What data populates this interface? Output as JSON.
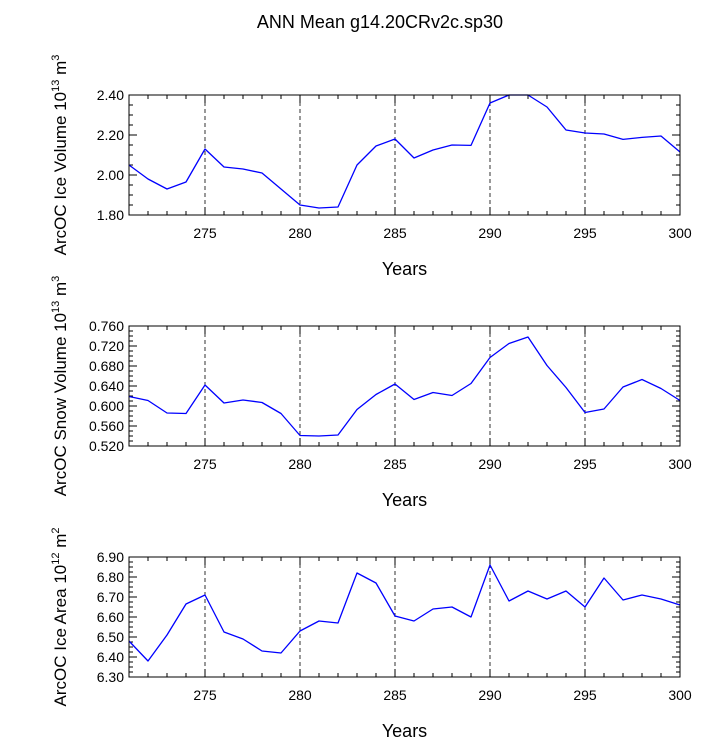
{
  "figure": {
    "title": "ANN Mean g14.20CRv2c.sp30"
  },
  "chart_data": [
    {
      "type": "line",
      "title": "ANN Mean g14.20CRv2c.sp30",
      "xlabel": "Years",
      "ylabel": {
        "text": "ArcOC Ice Volume 10",
        "exp": "13",
        "unit": " m",
        "unit_exp": "3"
      },
      "xlim": [
        271,
        300
      ],
      "ylim": [
        1.8,
        2.4
      ],
      "xticks": [
        275,
        280,
        285,
        290,
        295,
        300
      ],
      "xtick_labels": [
        "275",
        "280",
        "285",
        "290",
        "295",
        "300"
      ],
      "yticks": [
        1.8,
        2.0,
        2.2,
        2.4
      ],
      "ytick_labels": [
        "1.80",
        "2.00",
        "2.20",
        "2.40"
      ],
      "y_minor_step": 0.05,
      "grid": "vertical dashed at major x ticks",
      "color": "#0000ff",
      "series": [
        {
          "name": "Ice Volume",
          "x": [
            271,
            272,
            273,
            274,
            275,
            276,
            277,
            278,
            279,
            280,
            281,
            282,
            283,
            284,
            285,
            286,
            287,
            288,
            289,
            290,
            291,
            292,
            293,
            294,
            295,
            296,
            297,
            298,
            299,
            300
          ],
          "values": [
            2.05,
            1.98,
            1.93,
            1.965,
            2.13,
            2.04,
            2.03,
            2.01,
            1.93,
            1.85,
            1.835,
            1.84,
            2.05,
            2.145,
            2.18,
            2.085,
            2.125,
            2.15,
            2.148,
            2.36,
            2.4,
            2.4,
            2.34,
            2.225,
            2.21,
            2.205,
            2.178,
            2.188,
            2.195,
            2.115
          ]
        }
      ]
    },
    {
      "type": "line",
      "xlabel": "Years",
      "ylabel": {
        "text": "ArcOC Snow Volume 10",
        "exp": "13",
        "unit": " m",
        "unit_exp": "3"
      },
      "xlim": [
        271,
        300
      ],
      "ylim": [
        0.52,
        0.76
      ],
      "xticks": [
        275,
        280,
        285,
        290,
        295,
        300
      ],
      "xtick_labels": [
        "275",
        "280",
        "285",
        "290",
        "295",
        "300"
      ],
      "yticks": [
        0.52,
        0.56,
        0.6,
        0.64,
        0.68,
        0.72,
        0.76
      ],
      "ytick_labels": [
        "0.520",
        "0.560",
        "0.600",
        "0.640",
        "0.680",
        "0.720",
        "0.760"
      ],
      "y_minor_step": 0.01,
      "grid": "vertical dashed at major x ticks",
      "color": "#0000ff",
      "series": [
        {
          "name": "Snow Volume",
          "x": [
            271,
            272,
            273,
            274,
            275,
            276,
            277,
            278,
            279,
            280,
            281,
            282,
            283,
            284,
            285,
            286,
            287,
            288,
            289,
            290,
            291,
            292,
            293,
            294,
            295,
            296,
            297,
            298,
            299,
            300
          ],
          "values": [
            0.619,
            0.611,
            0.586,
            0.585,
            0.642,
            0.606,
            0.612,
            0.607,
            0.585,
            0.541,
            0.54,
            0.542,
            0.593,
            0.623,
            0.644,
            0.613,
            0.627,
            0.621,
            0.645,
            0.697,
            0.725,
            0.738,
            0.681,
            0.637,
            0.587,
            0.594,
            0.638,
            0.653,
            0.635,
            0.611
          ]
        }
      ]
    },
    {
      "type": "line",
      "xlabel": "Years",
      "ylabel": {
        "text": "ArcOC Ice Area 10",
        "exp": "12",
        "unit": " m",
        "unit_exp": "2"
      },
      "xlim": [
        271,
        300
      ],
      "ylim": [
        6.3,
        6.9
      ],
      "xticks": [
        275,
        280,
        285,
        290,
        295,
        300
      ],
      "xtick_labels": [
        "275",
        "280",
        "285",
        "290",
        "295",
        "300"
      ],
      "yticks": [
        6.3,
        6.4,
        6.5,
        6.6,
        6.7,
        6.8,
        6.9
      ],
      "ytick_labels": [
        "6.30",
        "6.40",
        "6.50",
        "6.60",
        "6.70",
        "6.80",
        "6.90"
      ],
      "y_minor_step": 0.025,
      "grid": "vertical dashed at major x ticks",
      "color": "#0000ff",
      "series": [
        {
          "name": "Ice Area",
          "x": [
            271,
            272,
            273,
            274,
            275,
            276,
            277,
            278,
            279,
            280,
            281,
            282,
            283,
            284,
            285,
            286,
            287,
            288,
            289,
            290,
            291,
            292,
            293,
            294,
            295,
            296,
            297,
            298,
            299,
            300
          ],
          "values": [
            6.48,
            6.38,
            6.51,
            6.665,
            6.71,
            6.525,
            6.49,
            6.43,
            6.42,
            6.53,
            6.58,
            6.57,
            6.82,
            6.77,
            6.605,
            6.58,
            6.64,
            6.65,
            6.6,
            6.86,
            6.68,
            6.73,
            6.69,
            6.73,
            6.65,
            6.795,
            6.685,
            6.71,
            6.69,
            6.66
          ]
        }
      ]
    }
  ]
}
